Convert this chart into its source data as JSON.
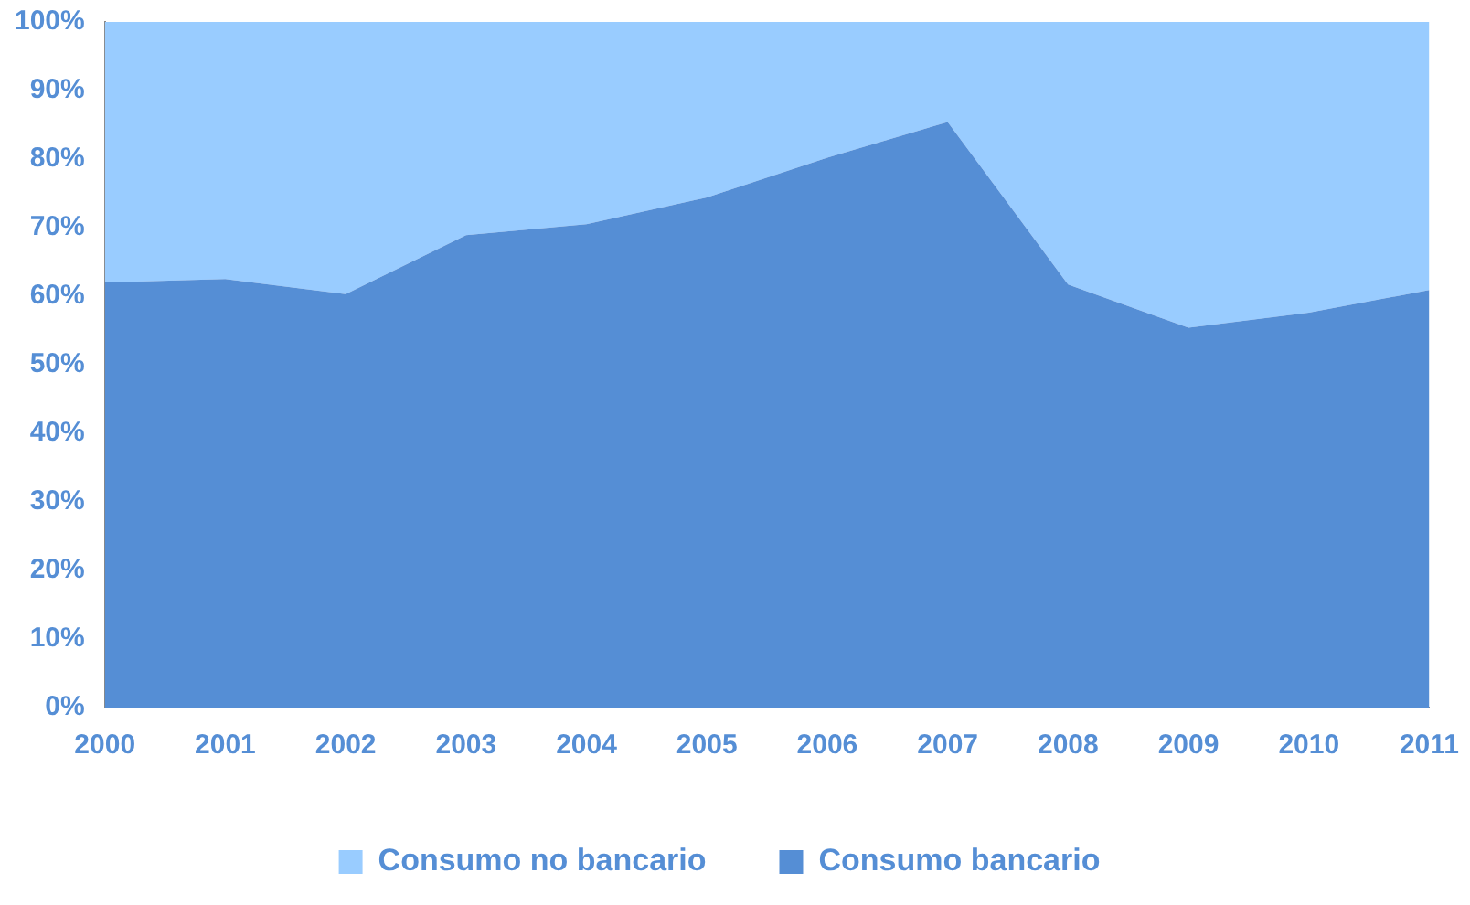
{
  "chart_data": {
    "type": "area",
    "stacked": true,
    "categories": [
      "2000",
      "2001",
      "2002",
      "2003",
      "2004",
      "2005",
      "2006",
      "2007",
      "2008",
      "2009",
      "2010",
      "2011"
    ],
    "series": [
      {
        "name": "Consumo bancario",
        "color": "#558ed5",
        "values": [
          62.0,
          62.5,
          60.3,
          68.9,
          70.5,
          74.4,
          80.2,
          85.4,
          61.7,
          55.4,
          57.6,
          60.9
        ]
      },
      {
        "name": "Consumo no bancario",
        "color": "#99ccff",
        "values": [
          38.0,
          37.5,
          39.7,
          31.1,
          29.5,
          25.6,
          19.8,
          14.6,
          38.3,
          44.6,
          42.4,
          39.1
        ]
      }
    ],
    "ylim": [
      0,
      100
    ],
    "yticks": [
      {
        "value": 0,
        "label": "0%"
      },
      {
        "value": 10,
        "label": "10%"
      },
      {
        "value": 20,
        "label": "20%"
      },
      {
        "value": 30,
        "label": "30%"
      },
      {
        "value": 40,
        "label": "40%"
      },
      {
        "value": 50,
        "label": "50%"
      },
      {
        "value": 60,
        "label": "60%"
      },
      {
        "value": 70,
        "label": "70%"
      },
      {
        "value": 80,
        "label": "80%"
      },
      {
        "value": 90,
        "label": "90%"
      },
      {
        "value": 100,
        "label": "100%"
      }
    ],
    "grid": false,
    "legend": "bottom"
  }
}
